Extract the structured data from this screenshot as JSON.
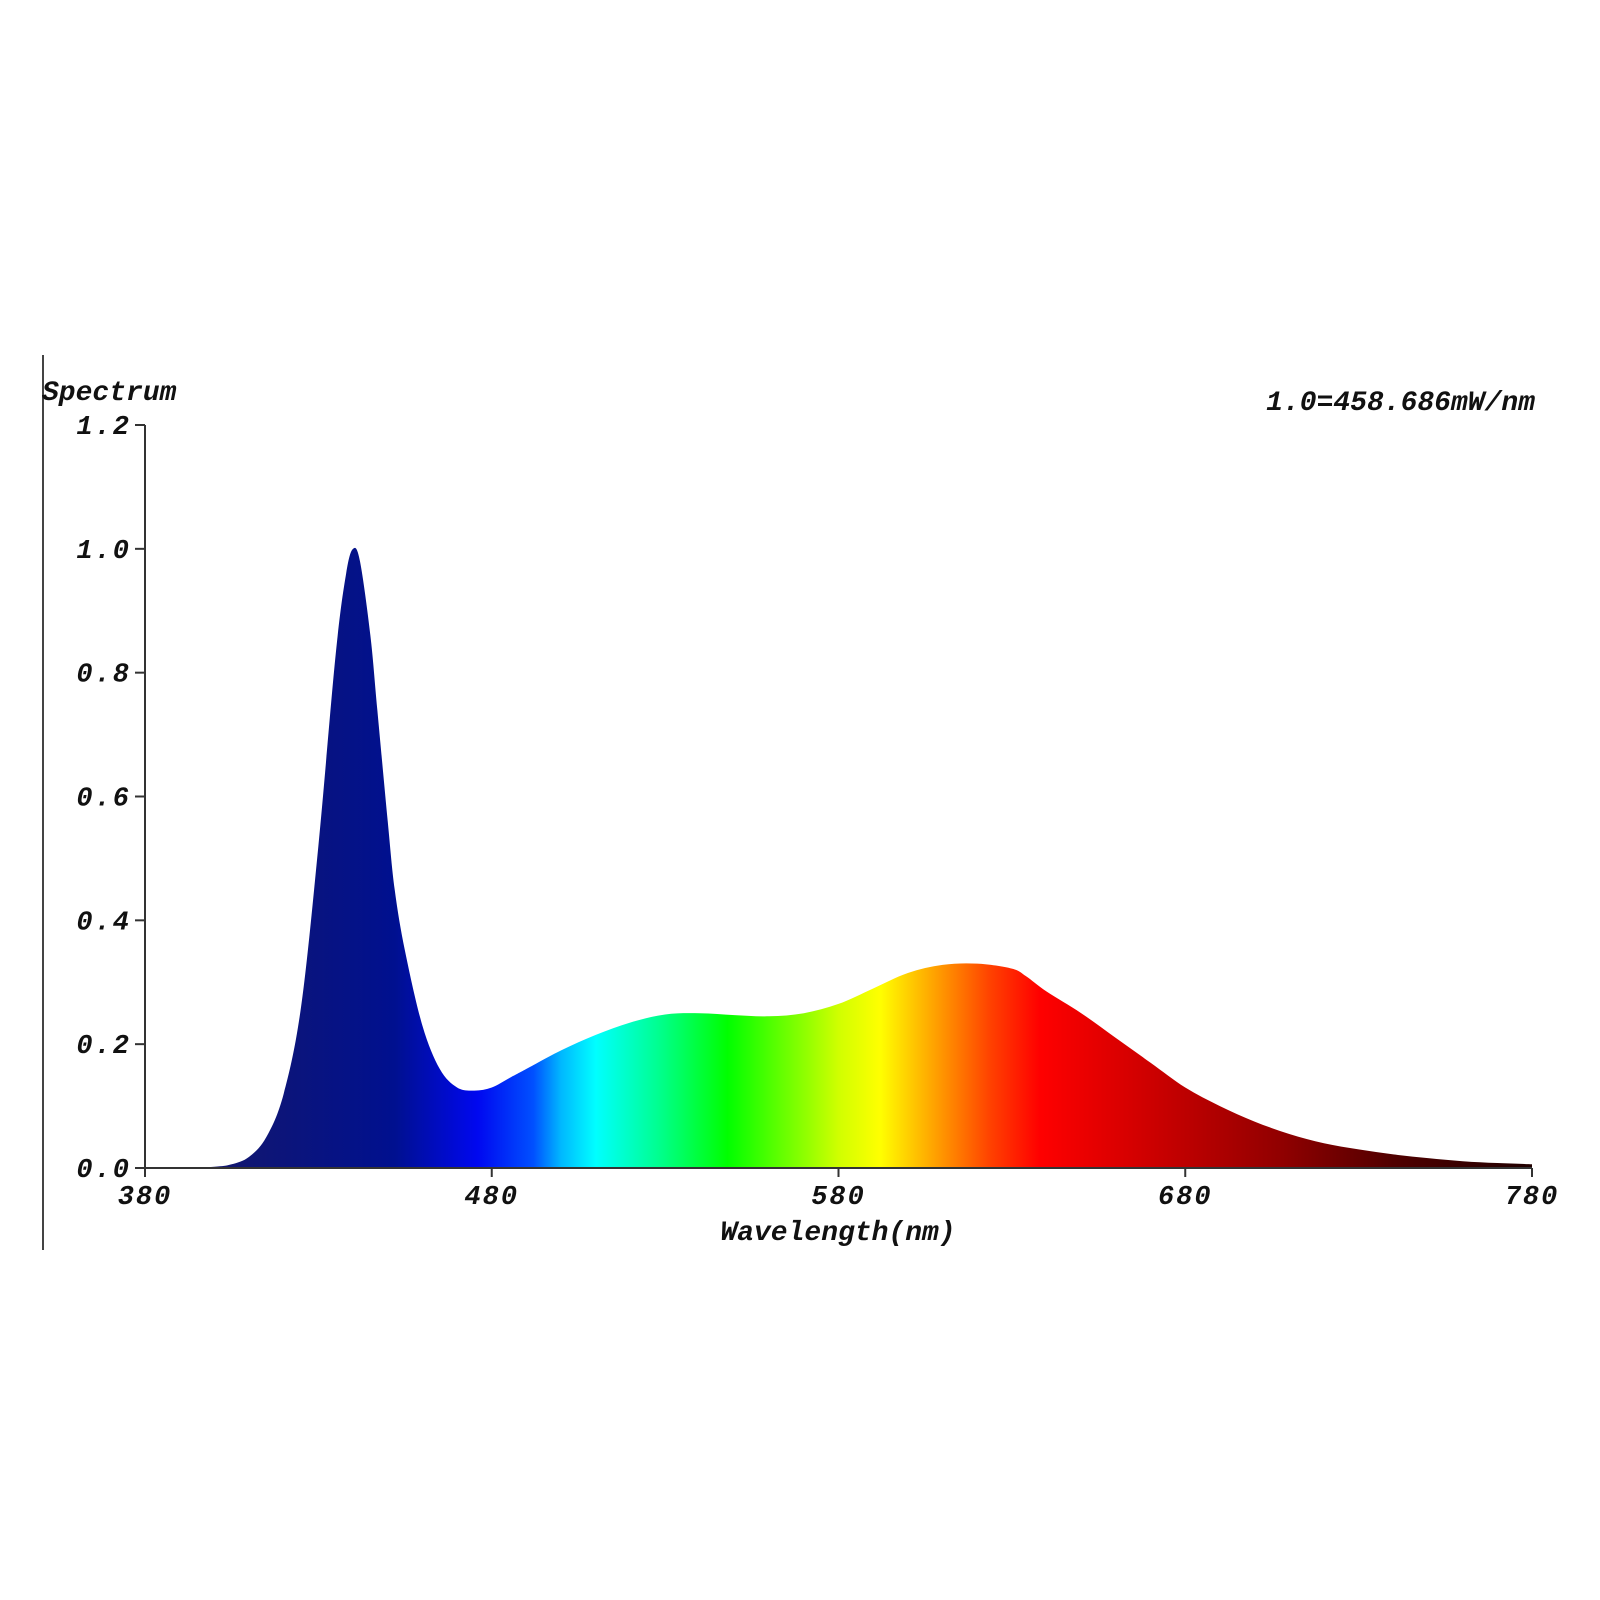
{
  "chart_data": {
    "type": "area",
    "ylabel": "Spectrum",
    "xlabel": "Wavelength(nm)",
    "annotation": "1.0=458.686mW/nm",
    "xlim": [
      380,
      780
    ],
    "ylim": [
      0,
      1.2
    ],
    "x_ticks": [
      "380",
      "480",
      "580",
      "680",
      "780"
    ],
    "y_ticks": [
      "0.0",
      "0.2",
      "0.4",
      "0.6",
      "0.8",
      "1.0",
      "1.2"
    ],
    "grid": false,
    "series": [
      {
        "x": [
          380,
          390,
          400,
          405,
          410,
          415,
          420,
          425,
          430,
          435,
          438,
          440,
          442,
          445,
          447,
          450,
          452,
          455,
          460,
          465,
          470,
          475,
          480,
          485,
          490,
          500,
          510,
          520,
          530,
          540,
          550,
          560,
          570,
          580,
          590,
          600,
          610,
          620,
          630,
          634,
          640,
          650,
          660,
          670,
          680,
          690,
          700,
          710,
          720,
          730,
          740,
          750,
          760,
          770,
          780
        ],
        "y": [
          0.0,
          0.0,
          0.002,
          0.006,
          0.018,
          0.05,
          0.12,
          0.26,
          0.52,
          0.83,
          0.96,
          1.0,
          0.98,
          0.86,
          0.74,
          0.56,
          0.45,
          0.35,
          0.23,
          0.16,
          0.13,
          0.125,
          0.13,
          0.145,
          0.16,
          0.19,
          0.215,
          0.235,
          0.248,
          0.25,
          0.247,
          0.245,
          0.25,
          0.265,
          0.29,
          0.315,
          0.328,
          0.33,
          0.322,
          0.31,
          0.285,
          0.25,
          0.21,
          0.17,
          0.13,
          0.1,
          0.075,
          0.055,
          0.04,
          0.03,
          0.022,
          0.016,
          0.011,
          0.008,
          0.006
        ]
      }
    ],
    "fill_colors": [
      {
        "offset": 0.0,
        "color": "#1a1a60"
      },
      {
        "offset": 0.18,
        "color": "#00108f"
      },
      {
        "offset": 0.24,
        "color": "#0008f0"
      },
      {
        "offset": 0.28,
        "color": "#0050ff"
      },
      {
        "offset": 0.3,
        "color": "#00b8ff"
      },
      {
        "offset": 0.325,
        "color": "#00ffff"
      },
      {
        "offset": 0.37,
        "color": "#00ff90"
      },
      {
        "offset": 0.42,
        "color": "#00ff00"
      },
      {
        "offset": 0.47,
        "color": "#80ff00"
      },
      {
        "offset": 0.5,
        "color": "#d0ff00"
      },
      {
        "offset": 0.53,
        "color": "#ffff00"
      },
      {
        "offset": 0.57,
        "color": "#ffa000"
      },
      {
        "offset": 0.61,
        "color": "#ff4000"
      },
      {
        "offset": 0.645,
        "color": "#ff0000"
      },
      {
        "offset": 0.72,
        "color": "#d00000"
      },
      {
        "offset": 0.82,
        "color": "#900000"
      },
      {
        "offset": 0.9,
        "color": "#500000"
      },
      {
        "offset": 1.0,
        "color": "#200000"
      }
    ],
    "axis_color": "#333333"
  }
}
